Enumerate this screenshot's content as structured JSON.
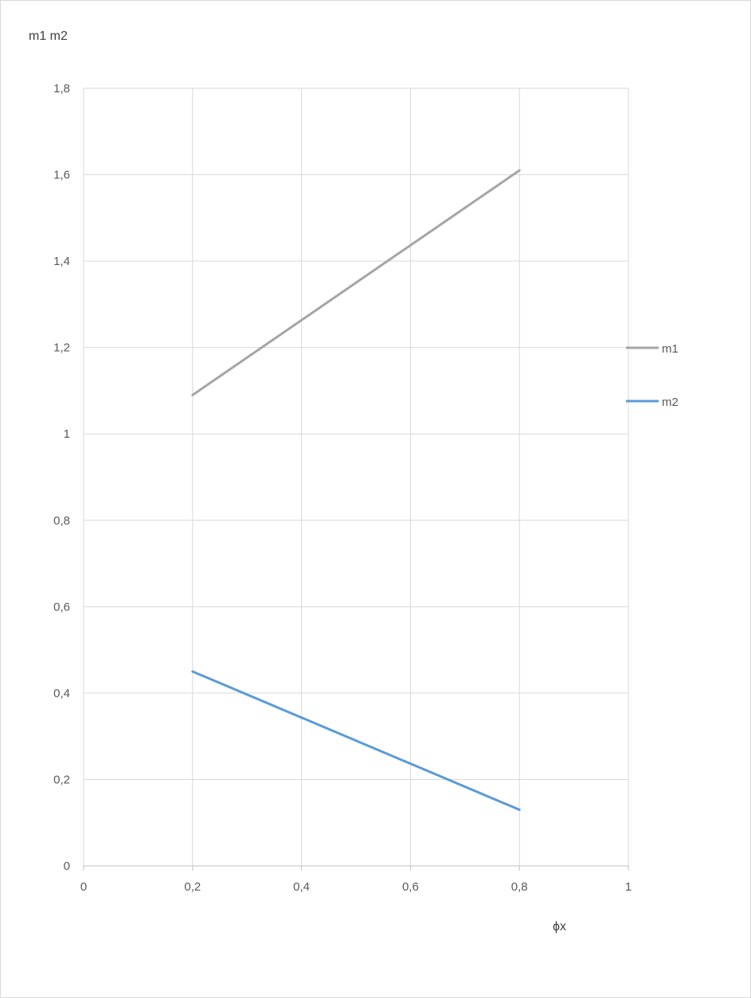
{
  "chart_data": {
    "type": "line",
    "title": "",
    "ylabel": "m1  m2",
    "xlabel": "ϕx",
    "xlim": [
      0,
      1
    ],
    "ylim": [
      0,
      1.8
    ],
    "x_ticks": [
      "0",
      "0,2",
      "0,4",
      "0,6",
      "0,8",
      "1"
    ],
    "y_ticks": [
      "0",
      "0,2",
      "0,4",
      "0,6",
      "0,8",
      "1",
      "1,2",
      "1,4",
      "1,6",
      "1,8"
    ],
    "grid": true,
    "legend_position": "right",
    "series": [
      {
        "name": "m1",
        "color": "#a5a5a5",
        "x": [
          0.2,
          0.8
        ],
        "y": [
          1.09,
          1.61
        ]
      },
      {
        "name": "m2",
        "color": "#5b9bd5",
        "x": [
          0.2,
          0.8
        ],
        "y": [
          0.45,
          0.13
        ]
      }
    ]
  }
}
